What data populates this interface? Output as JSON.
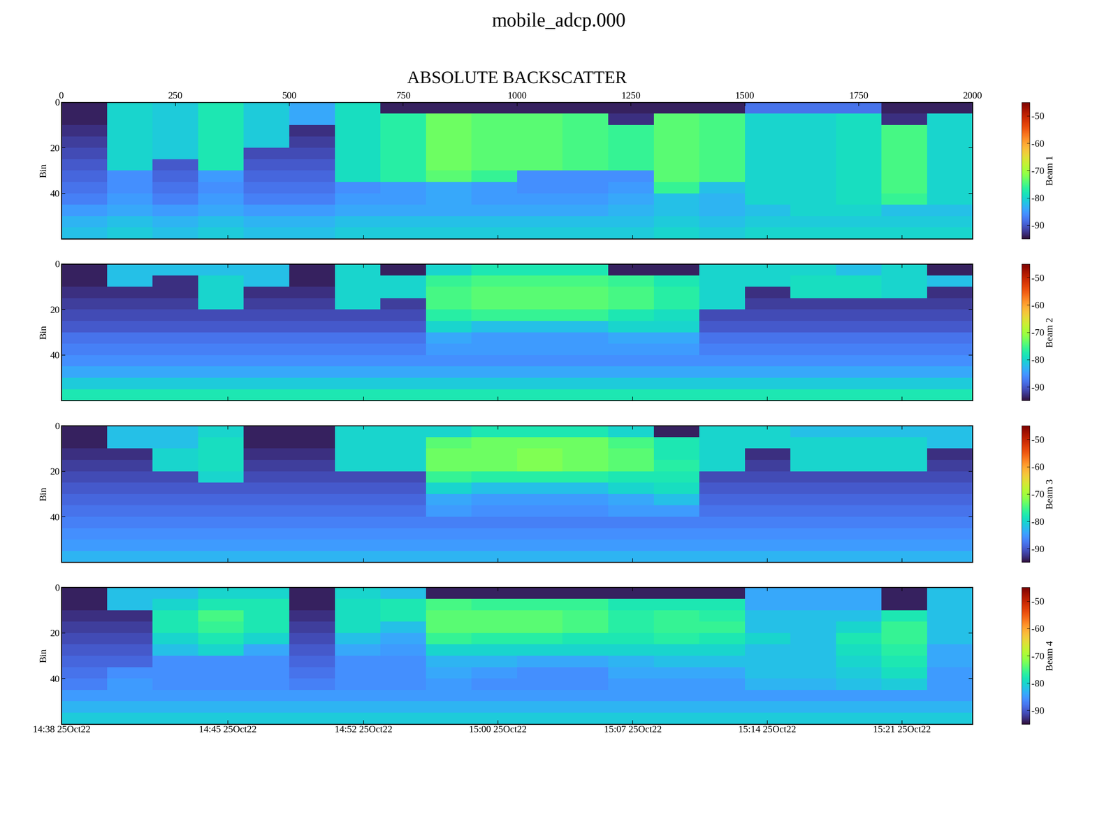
{
  "chart_data": {
    "type": "heatmap",
    "title": "mobile_adcp.000",
    "subtitle": "ABSOLUTE BACKSCATTER",
    "ylabel": "Bin",
    "xlim": [
      0,
      2000
    ],
    "top_xticks": [
      0,
      250,
      500,
      750,
      1000,
      1250,
      1500,
      1750,
      2000
    ],
    "xticks": [
      {
        "value": 0,
        "label": "14:38 25Oct22"
      },
      {
        "value": 365,
        "label": "14:45 25Oct22"
      },
      {
        "value": 663,
        "label": "14:52 25Oct22"
      },
      {
        "value": 958,
        "label": "15:00 25Oct22"
      },
      {
        "value": 1254,
        "label": "15:07 25Oct22"
      },
      {
        "value": 1549,
        "label": "15:14 25Oct22"
      },
      {
        "value": 1845,
        "label": "15:21 25Oct22"
      }
    ],
    "ylim": [
      60,
      0
    ],
    "yticks": [
      0,
      20,
      40
    ],
    "x_edges": [
      0,
      100,
      200,
      300,
      400,
      500,
      600,
      700,
      800,
      900,
      1000,
      1100,
      1200,
      1300,
      1400,
      1500,
      1600,
      1700,
      1800,
      1900,
      2000
    ],
    "y_edges": [
      0,
      5,
      10,
      15,
      20,
      25,
      30,
      35,
      40,
      45,
      50,
      55,
      60
    ],
    "color_range": [
      -95,
      -45
    ],
    "color_ticks": [
      -50,
      -60,
      -70,
      -80,
      -90
    ],
    "beams": [
      {
        "name": "Beam 1",
        "cells": [
          [
            -94,
            -80,
            -81,
            -78,
            -81,
            -84,
            -79,
            -94,
            -94,
            -94,
            -94,
            -94,
            -94,
            -94,
            -94,
            -88,
            -88,
            -88,
            -94,
            -94
          ],
          [
            -94,
            -80,
            -81,
            -78,
            -81,
            -84,
            -79,
            -77,
            -73,
            -74,
            -74,
            -75,
            -93,
            -74,
            -75,
            -80,
            -80,
            -79,
            -93,
            -80
          ],
          [
            -93,
            -80,
            -81,
            -78,
            -81,
            -93,
            -79,
            -77,
            -73,
            -74,
            -74,
            -75,
            -76,
            -74,
            -75,
            -80,
            -80,
            -79,
            -75,
            -80
          ],
          [
            -92,
            -80,
            -81,
            -78,
            -81,
            -92,
            -79,
            -77,
            -73,
            -74,
            -74,
            -75,
            -76,
            -74,
            -75,
            -80,
            -80,
            -79,
            -75,
            -80
          ],
          [
            -91,
            -80,
            -81,
            -78,
            -91,
            -91,
            -79,
            -77,
            -73,
            -74,
            -74,
            -75,
            -76,
            -74,
            -75,
            -80,
            -80,
            -79,
            -75,
            -80
          ],
          [
            -90,
            -80,
            -90,
            -78,
            -90,
            -90,
            -79,
            -77,
            -73,
            -74,
            -74,
            -75,
            -76,
            -74,
            -75,
            -80,
            -80,
            -79,
            -75,
            -80
          ],
          [
            -89,
            -86,
            -89,
            -85,
            -89,
            -89,
            -79,
            -77,
            -74,
            -76,
            -86,
            -86,
            -86,
            -74,
            -75,
            -80,
            -80,
            -79,
            -75,
            -80
          ],
          [
            -88,
            -86,
            -88,
            -86,
            -88,
            -88,
            -86,
            -85,
            -84,
            -85,
            -86,
            -86,
            -85,
            -76,
            -82,
            -80,
            -80,
            -79,
            -75,
            -80
          ],
          [
            -87,
            -85,
            -87,
            -85,
            -87,
            -87,
            -85,
            -85,
            -84,
            -85,
            -85,
            -85,
            -84,
            -82,
            -83,
            -80,
            -80,
            -79,
            -76,
            -80
          ],
          [
            -85,
            -84,
            -85,
            -84,
            -85,
            -85,
            -84,
            -84,
            -84,
            -84,
            -84,
            -84,
            -83,
            -82,
            -83,
            -82,
            -80,
            -80,
            -82,
            -82
          ],
          [
            -83,
            -82,
            -83,
            -82,
            -83,
            -83,
            -82,
            -82,
            -82,
            -82,
            -82,
            -82,
            -82,
            -81,
            -82,
            -81,
            -81,
            -81,
            -81,
            -81
          ],
          [
            -82,
            -81,
            -82,
            -81,
            -82,
            -82,
            -81,
            -81,
            -81,
            -81,
            -81,
            -81,
            -81,
            -80,
            -81,
            -80,
            -80,
            -80,
            -80,
            -80
          ]
        ]
      },
      {
        "name": "Beam 2",
        "cells": [
          [
            -94,
            -82,
            -82,
            -82,
            -82,
            -94,
            -80,
            -94,
            -80,
            -78,
            -78,
            -78,
            -94,
            -94,
            -80,
            -80,
            -80,
            -82,
            -80,
            -94
          ],
          [
            -94,
            -82,
            -93,
            -80,
            -82,
            -94,
            -80,
            -80,
            -76,
            -75,
            -75,
            -75,
            -76,
            -78,
            -80,
            -80,
            -79,
            -79,
            -80,
            -82
          ],
          [
            -93,
            -93,
            -93,
            -80,
            -93,
            -93,
            -80,
            -80,
            -75,
            -74,
            -74,
            -74,
            -75,
            -77,
            -80,
            -93,
            -79,
            -79,
            -80,
            -93
          ],
          [
            -92,
            -92,
            -92,
            -80,
            -92,
            -92,
            -80,
            -92,
            -75,
            -74,
            -74,
            -74,
            -75,
            -77,
            -80,
            -92,
            -92,
            -92,
            -92,
            -92
          ],
          [
            -91,
            -91,
            -91,
            -91,
            -91,
            -91,
            -91,
            -91,
            -77,
            -76,
            -76,
            -76,
            -78,
            -79,
            -91,
            -91,
            -91,
            -91,
            -91,
            -91
          ],
          [
            -90,
            -90,
            -90,
            -90,
            -90,
            -90,
            -90,
            -90,
            -80,
            -82,
            -82,
            -82,
            -80,
            -80,
            -90,
            -90,
            -90,
            -90,
            -90,
            -90
          ],
          [
            -88,
            -88,
            -88,
            -88,
            -88,
            -88,
            -88,
            -88,
            -84,
            -85,
            -85,
            -85,
            -84,
            -84,
            -88,
            -88,
            -88,
            -88,
            -88,
            -88
          ],
          [
            -87,
            -87,
            -87,
            -87,
            -87,
            -87,
            -87,
            -87,
            -85,
            -85,
            -85,
            -85,
            -85,
            -85,
            -87,
            -87,
            -87,
            -87,
            -87,
            -87
          ],
          [
            -86,
            -86,
            -86,
            -86,
            -86,
            -86,
            -86,
            -86,
            -86,
            -86,
            -86,
            -86,
            -86,
            -86,
            -86,
            -86,
            -86,
            -86,
            -86,
            -86
          ],
          [
            -84,
            -84,
            -84,
            -84,
            -84,
            -84,
            -84,
            -84,
            -84,
            -84,
            -84,
            -84,
            -84,
            -84,
            -84,
            -84,
            -84,
            -84,
            -84,
            -84
          ],
          [
            -81,
            -81,
            -81,
            -81,
            -81,
            -81,
            -81,
            -81,
            -81,
            -81,
            -81,
            -81,
            -81,
            -81,
            -81,
            -81,
            -81,
            -81,
            -81,
            -81
          ],
          [
            -78,
            -78,
            -78,
            -78,
            -78,
            -78,
            -78,
            -78,
            -78,
            -78,
            -78,
            -78,
            -78,
            -78,
            -78,
            -78,
            -78,
            -78,
            -78,
            -78
          ]
        ]
      },
      {
        "name": "Beam 3",
        "cells": [
          [
            -94,
            -82,
            -82,
            -80,
            -94,
            -94,
            -80,
            -80,
            -80,
            -78,
            -78,
            -78,
            -80,
            -94,
            -80,
            -80,
            -82,
            -82,
            -82,
            -82
          ],
          [
            -94,
            -82,
            -82,
            -79,
            -94,
            -94,
            -80,
            -80,
            -74,
            -73,
            -73,
            -73,
            -75,
            -78,
            -80,
            -80,
            -80,
            -80,
            -80,
            -82
          ],
          [
            -93,
            -93,
            -80,
            -79,
            -93,
            -93,
            -80,
            -80,
            -73,
            -73,
            -72,
            -73,
            -74,
            -78,
            -80,
            -93,
            -80,
            -80,
            -80,
            -93
          ],
          [
            -92,
            -92,
            -80,
            -79,
            -92,
            -92,
            -80,
            -80,
            -73,
            -73,
            -72,
            -73,
            -74,
            -77,
            -80,
            -92,
            -80,
            -80,
            -80,
            -92
          ],
          [
            -91,
            -91,
            -91,
            -80,
            -91,
            -91,
            -91,
            -91,
            -76,
            -77,
            -77,
            -77,
            -78,
            -78,
            -91,
            -91,
            -91,
            -91,
            -91,
            -91
          ],
          [
            -90,
            -90,
            -90,
            -90,
            -90,
            -90,
            -90,
            -90,
            -80,
            -82,
            -82,
            -82,
            -80,
            -79,
            -90,
            -90,
            -90,
            -90,
            -90,
            -90
          ],
          [
            -89,
            -89,
            -89,
            -89,
            -89,
            -89,
            -89,
            -89,
            -84,
            -85,
            -85,
            -85,
            -84,
            -82,
            -89,
            -89,
            -89,
            -89,
            -89,
            -89
          ],
          [
            -88,
            -88,
            -88,
            -88,
            -88,
            -88,
            -88,
            -88,
            -85,
            -86,
            -86,
            -86,
            -85,
            -85,
            -88,
            -88,
            -88,
            -88,
            -88,
            -88
          ],
          [
            -87,
            -87,
            -87,
            -87,
            -87,
            -87,
            -87,
            -87,
            -87,
            -87,
            -87,
            -87,
            -87,
            -87,
            -87,
            -87,
            -87,
            -87,
            -87,
            -87
          ],
          [
            -86,
            -86,
            -86,
            -86,
            -86,
            -86,
            -86,
            -86,
            -86,
            -86,
            -86,
            -86,
            -86,
            -86,
            -86,
            -86,
            -86,
            -86,
            -86,
            -86
          ],
          [
            -85,
            -85,
            -85,
            -85,
            -85,
            -85,
            -85,
            -85,
            -85,
            -85,
            -85,
            -85,
            -85,
            -85,
            -85,
            -85,
            -85,
            -85,
            -85,
            -85
          ],
          [
            -83,
            -83,
            -83,
            -83,
            -83,
            -83,
            -83,
            -83,
            -83,
            -83,
            -83,
            -83,
            -83,
            -83,
            -83,
            -83,
            -83,
            -83,
            -83,
            -83
          ]
        ]
      },
      {
        "name": "Beam 4",
        "cells": [
          [
            -94,
            -82,
            -82,
            -80,
            -80,
            -94,
            -80,
            -82,
            -94,
            -94,
            -94,
            -94,
            -94,
            -94,
            -94,
            -84,
            -84,
            -84,
            -94,
            -82
          ],
          [
            -94,
            -82,
            -80,
            -78,
            -78,
            -94,
            -79,
            -78,
            -75,
            -76,
            -76,
            -76,
            -78,
            -78,
            -78,
            -84,
            -84,
            -84,
            -94,
            -82
          ],
          [
            -93,
            -93,
            -78,
            -75,
            -78,
            -93,
            -79,
            -78,
            -74,
            -74,
            -74,
            -75,
            -77,
            -76,
            -77,
            -82,
            -82,
            -82,
            -78,
            -82
          ],
          [
            -92,
            -92,
            -78,
            -76,
            -78,
            -92,
            -79,
            -82,
            -74,
            -74,
            -74,
            -75,
            -77,
            -76,
            -76,
            -82,
            -82,
            -80,
            -76,
            -82
          ],
          [
            -91,
            -91,
            -80,
            -78,
            -80,
            -91,
            -82,
            -84,
            -76,
            -77,
            -77,
            -78,
            -78,
            -77,
            -78,
            -80,
            -82,
            -78,
            -76,
            -82
          ],
          [
            -90,
            -90,
            -82,
            -80,
            -84,
            -90,
            -84,
            -85,
            -80,
            -80,
            -80,
            -80,
            -80,
            -80,
            -80,
            -82,
            -82,
            -79,
            -77,
            -84
          ],
          [
            -89,
            -89,
            -86,
            -86,
            -86,
            -89,
            -86,
            -86,
            -83,
            -83,
            -84,
            -84,
            -83,
            -82,
            -82,
            -82,
            -82,
            -80,
            -78,
            -84
          ],
          [
            -88,
            -86,
            -86,
            -86,
            -86,
            -88,
            -86,
            -86,
            -84,
            -85,
            -86,
            -86,
            -84,
            -84,
            -84,
            -82,
            -82,
            -81,
            -79,
            -85
          ],
          [
            -87,
            -85,
            -86,
            -86,
            -86,
            -87,
            -86,
            -86,
            -85,
            -86,
            -86,
            -86,
            -85,
            -85,
            -85,
            -83,
            -83,
            -82,
            -81,
            -85
          ],
          [
            -85,
            -85,
            -85,
            -85,
            -85,
            -85,
            -85,
            -85,
            -85,
            -85,
            -85,
            -85,
            -85,
            -85,
            -85,
            -85,
            -85,
            -85,
            -85,
            -85
          ],
          [
            -83,
            -83,
            -83,
            -83,
            -83,
            -83,
            -83,
            -83,
            -83,
            -83,
            -83,
            -83,
            -83,
            -83,
            -83,
            -83,
            -83,
            -83,
            -83,
            -83
          ],
          [
            -81,
            -81,
            -81,
            -81,
            -81,
            -81,
            -81,
            -81,
            -81,
            -81,
            -81,
            -81,
            -81,
            -81,
            -81,
            -81,
            -81,
            -81,
            -81,
            -81
          ]
        ]
      }
    ]
  }
}
